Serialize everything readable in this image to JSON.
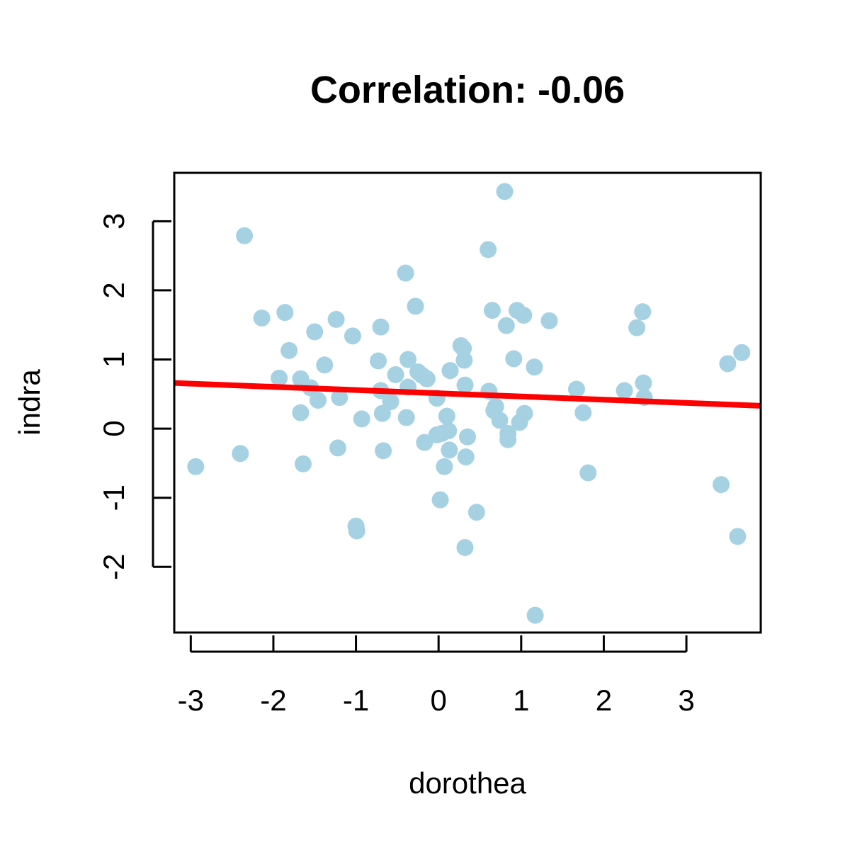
{
  "chart_data": {
    "type": "scatter",
    "title": "Correlation: -0.06",
    "xlabel": "dorothea",
    "ylabel": "indra",
    "xlim": [
      -3.2,
      3.9
    ],
    "ylim": [
      -2.95,
      3.7
    ],
    "xticks": [
      -3,
      -2,
      -1,
      0,
      1,
      2,
      3
    ],
    "yticks": [
      -2,
      -1,
      0,
      1,
      2,
      3
    ],
    "xtick_labels": [
      "-3",
      "-2",
      "-1",
      "0",
      "1",
      "2",
      "3"
    ],
    "ytick_labels": [
      "-2",
      "-1",
      "0",
      "1",
      "2",
      "3"
    ],
    "grid": false,
    "legend": "none",
    "point_color": "#a6d1e3",
    "line_color": "#ff0000",
    "fit_line": {
      "x": [
        -3.2,
        3.9
      ],
      "y": [
        0.66,
        0.33
      ]
    },
    "points": [
      {
        "x": -2.94,
        "y": -0.55
      },
      {
        "x": -2.4,
        "y": -0.36
      },
      {
        "x": -2.35,
        "y": 2.79
      },
      {
        "x": -2.14,
        "y": 1.6
      },
      {
        "x": -1.93,
        "y": 0.73
      },
      {
        "x": -1.86,
        "y": 1.68
      },
      {
        "x": -1.81,
        "y": 1.13
      },
      {
        "x": -1.67,
        "y": 0.72
      },
      {
        "x": -1.67,
        "y": 0.23
      },
      {
        "x": -1.64,
        "y": -0.51
      },
      {
        "x": -1.55,
        "y": 0.59
      },
      {
        "x": -1.5,
        "y": 1.4
      },
      {
        "x": -1.46,
        "y": 0.41
      },
      {
        "x": -1.38,
        "y": 0.92
      },
      {
        "x": -1.24,
        "y": 1.58
      },
      {
        "x": -1.22,
        "y": -0.28
      },
      {
        "x": -1.2,
        "y": 0.45
      },
      {
        "x": -1.04,
        "y": 1.34
      },
      {
        "x": -1.0,
        "y": -1.41
      },
      {
        "x": -0.99,
        "y": -1.48
      },
      {
        "x": -0.93,
        "y": 0.14
      },
      {
        "x": -0.73,
        "y": 0.98
      },
      {
        "x": -0.7,
        "y": 1.47
      },
      {
        "x": -0.7,
        "y": 0.55
      },
      {
        "x": -0.68,
        "y": 0.22
      },
      {
        "x": -0.67,
        "y": -0.32
      },
      {
        "x": -0.58,
        "y": 0.39
      },
      {
        "x": -0.52,
        "y": 0.78
      },
      {
        "x": -0.4,
        "y": 2.25
      },
      {
        "x": -0.39,
        "y": 0.16
      },
      {
        "x": -0.37,
        "y": 1.0
      },
      {
        "x": -0.37,
        "y": 0.6
      },
      {
        "x": -0.28,
        "y": 1.77
      },
      {
        "x": -0.25,
        "y": 0.82
      },
      {
        "x": -0.2,
        "y": 0.77
      },
      {
        "x": -0.17,
        "y": -0.2
      },
      {
        "x": -0.14,
        "y": 0.72
      },
      {
        "x": -0.02,
        "y": 0.44
      },
      {
        "x": -0.02,
        "y": -0.09
      },
      {
        "x": 0.02,
        "y": -1.03
      },
      {
        "x": 0.04,
        "y": -0.07
      },
      {
        "x": 0.07,
        "y": -0.55
      },
      {
        "x": 0.1,
        "y": 0.18
      },
      {
        "x": 0.12,
        "y": -0.03
      },
      {
        "x": 0.13,
        "y": -0.31
      },
      {
        "x": 0.14,
        "y": 0.84
      },
      {
        "x": 0.27,
        "y": 1.2
      },
      {
        "x": 0.3,
        "y": 1.16
      },
      {
        "x": 0.31,
        "y": 0.99
      },
      {
        "x": 0.32,
        "y": 0.63
      },
      {
        "x": 0.32,
        "y": -1.72
      },
      {
        "x": 0.33,
        "y": -0.41
      },
      {
        "x": 0.35,
        "y": -0.12
      },
      {
        "x": 0.46,
        "y": -1.21
      },
      {
        "x": 0.6,
        "y": 2.59
      },
      {
        "x": 0.61,
        "y": 0.54
      },
      {
        "x": 0.65,
        "y": 1.71
      },
      {
        "x": 0.67,
        "y": 0.26
      },
      {
        "x": 0.69,
        "y": 0.32
      },
      {
        "x": 0.74,
        "y": 0.12
      },
      {
        "x": 0.8,
        "y": 3.43
      },
      {
        "x": 0.82,
        "y": 1.49
      },
      {
        "x": 0.84,
        "y": -0.07
      },
      {
        "x": 0.84,
        "y": -0.16
      },
      {
        "x": 0.91,
        "y": 1.01
      },
      {
        "x": 0.95,
        "y": 1.71
      },
      {
        "x": 0.98,
        "y": 0.09
      },
      {
        "x": 1.03,
        "y": 1.64
      },
      {
        "x": 1.04,
        "y": 0.22
      },
      {
        "x": 1.16,
        "y": 0.89
      },
      {
        "x": 1.17,
        "y": -2.7
      },
      {
        "x": 1.34,
        "y": 1.56
      },
      {
        "x": 1.67,
        "y": 0.57
      },
      {
        "x": 1.75,
        "y": 0.23
      },
      {
        "x": 1.81,
        "y": -0.64
      },
      {
        "x": 2.25,
        "y": 0.55
      },
      {
        "x": 2.4,
        "y": 1.46
      },
      {
        "x": 2.47,
        "y": 1.69
      },
      {
        "x": 2.48,
        "y": 0.66
      },
      {
        "x": 2.49,
        "y": 0.45
      },
      {
        "x": 3.42,
        "y": -0.81
      },
      {
        "x": 3.5,
        "y": 0.94
      },
      {
        "x": 3.62,
        "y": -1.56
      },
      {
        "x": 3.67,
        "y": 1.1
      }
    ]
  }
}
